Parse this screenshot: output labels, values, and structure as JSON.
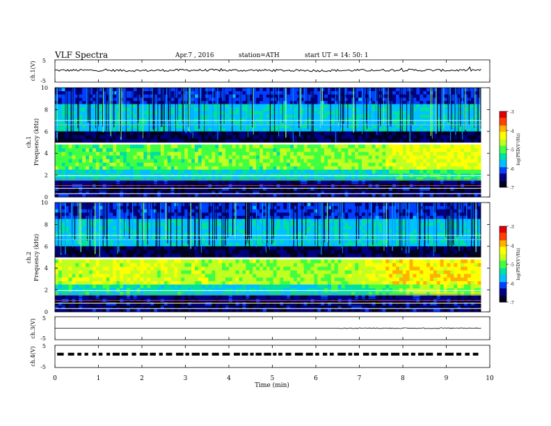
{
  "header": {
    "title": "VLF Spectra",
    "date": "Apr.7 , 2016",
    "station": "station=ATH",
    "start": "start UT = 14: 50: 1"
  },
  "colors": {
    "colormap": [
      "#000020",
      "#000080",
      "#0040ff",
      "#00c0ff",
      "#00e0a0",
      "#40ff40",
      "#c0ff20",
      "#ffff00",
      "#ffb000",
      "#ff4000",
      "#e00000",
      "#ffffff"
    ],
    "trace": "#000000"
  },
  "chart_data": [
    {
      "type": "line",
      "name": "ch1-voltage",
      "ylabel": "ch.1(V)",
      "ylim": [
        -5,
        5
      ],
      "yticks": [
        "5",
        "-5"
      ],
      "x": [
        0,
        1,
        2,
        3,
        4,
        5,
        6,
        7,
        8,
        9,
        9.8
      ],
      "values": [
        0.3,
        0.3,
        0.2,
        0.4,
        0.3,
        0.3,
        0.2,
        0.3,
        0.4,
        0.3,
        0.4
      ],
      "xlim": [
        0,
        10
      ]
    },
    {
      "type": "heatmap",
      "name": "ch1-spectrogram",
      "ylabel": "ch.1\nFrequency (kHz)",
      "ylim": [
        0,
        10
      ],
      "yticks": [
        "10",
        "8",
        "6",
        "4",
        "2",
        "0"
      ],
      "xlim": [
        0,
        9.8
      ],
      "colorbar": {
        "label": "log(PSD(V²/Hz)",
        "range": [
          -7,
          -3
        ],
        "ticks": [
          "-3",
          "-4",
          "-5",
          "-6",
          "-7"
        ]
      },
      "time_min": [
        0,
        2,
        4,
        6,
        7,
        8,
        9,
        9.8
      ],
      "bands": [
        {
          "freq_khz": [
            8.5,
            10
          ],
          "log_psd": [
            -6.2,
            -6.2,
            -6.2,
            -6.2,
            -6.2,
            -6.2,
            -6.2,
            -6.2
          ]
        },
        {
          "freq_khz": [
            6,
            8.5
          ],
          "log_psd": [
            -5.6,
            -5.6,
            -5.6,
            -5.6,
            -5.6,
            -5.6,
            -5.6,
            -5.6
          ]
        },
        {
          "freq_khz": [
            5,
            6
          ],
          "log_psd": [
            -6.7,
            -6.7,
            -6.7,
            -6.7,
            -6.7,
            -6.7,
            -6.7,
            -6.7
          ]
        },
        {
          "freq_khz": [
            2.5,
            4.8
          ],
          "log_psd": [
            -5.0,
            -5.0,
            -4.9,
            -4.9,
            -4.8,
            -4.5,
            -4.4,
            -4.4
          ]
        },
        {
          "freq_khz": [
            1.5,
            2.5
          ],
          "log_psd": [
            -5.5,
            -5.5,
            -5.5,
            -5.5,
            -5.5,
            -5.3,
            -5.2,
            -5.2
          ]
        },
        {
          "freq_khz": [
            0,
            1.5
          ],
          "log_psd": [
            -6.5,
            -6.5,
            -6.5,
            -6.5,
            -6.5,
            -6.5,
            -6.5,
            -6.5
          ]
        }
      ]
    },
    {
      "type": "heatmap",
      "name": "ch2-spectrogram",
      "ylabel": "ch.2\nFrequency (kHz)",
      "ylim": [
        0,
        10
      ],
      "yticks": [
        "10",
        "8",
        "6",
        "4",
        "2",
        "0"
      ],
      "xlim": [
        0,
        9.8
      ],
      "colorbar": {
        "label": "log(PSD(V²/Hz)",
        "range": [
          -7,
          -3
        ],
        "ticks": [
          "-3",
          "-4",
          "-5",
          "-6",
          "-7"
        ]
      },
      "time_min": [
        0,
        2,
        4,
        6,
        7,
        8,
        9,
        9.8
      ],
      "bands": [
        {
          "freq_khz": [
            8.5,
            10
          ],
          "log_psd": [
            -6.2,
            -6.2,
            -6.2,
            -6.2,
            -6.2,
            -6.2,
            -6.2,
            -6.2
          ]
        },
        {
          "freq_khz": [
            6,
            8.5
          ],
          "log_psd": [
            -5.6,
            -5.6,
            -5.6,
            -5.6,
            -5.6,
            -5.6,
            -5.6,
            -5.6
          ]
        },
        {
          "freq_khz": [
            5,
            6
          ],
          "log_psd": [
            -6.7,
            -6.7,
            -6.7,
            -6.7,
            -6.7,
            -6.7,
            -6.7,
            -6.7
          ]
        },
        {
          "freq_khz": [
            2.5,
            4.8
          ],
          "log_psd": [
            -4.6,
            -4.5,
            -4.7,
            -4.8,
            -4.6,
            -4.2,
            -4.2,
            -4.2
          ]
        },
        {
          "freq_khz": [
            1.5,
            2.5
          ],
          "log_psd": [
            -5.4,
            -5.4,
            -5.5,
            -5.5,
            -5.3,
            -4.8,
            -4.7,
            -4.7
          ]
        },
        {
          "freq_khz": [
            0,
            1.5
          ],
          "log_psd": [
            -6.5,
            -6.5,
            -6.5,
            -6.5,
            -6.5,
            -6.5,
            -6.5,
            -6.5
          ]
        }
      ]
    },
    {
      "type": "line",
      "name": "ch3-voltage",
      "ylabel": "ch.3(V)",
      "ylim": [
        -5,
        5
      ],
      "yticks": [
        "5",
        "-5"
      ],
      "x": [
        0,
        6.5,
        9.8
      ],
      "values": [
        0,
        0,
        0
      ],
      "xlim": [
        0,
        10
      ]
    },
    {
      "type": "line",
      "name": "ch4-voltage",
      "ylabel": "ch.4(V)",
      "ylim": [
        -5,
        5
      ],
      "yticks": [
        "5",
        "-5"
      ],
      "x": [
        0,
        9.8
      ],
      "values": [
        1,
        1
      ],
      "xlim": [
        0,
        10
      ]
    }
  ],
  "xaxis": {
    "label": "Time (min)",
    "ticks": [
      "0",
      "1",
      "2",
      "3",
      "4",
      "5",
      "6",
      "7",
      "8",
      "9",
      "10"
    ],
    "xlim": [
      0,
      10
    ]
  }
}
